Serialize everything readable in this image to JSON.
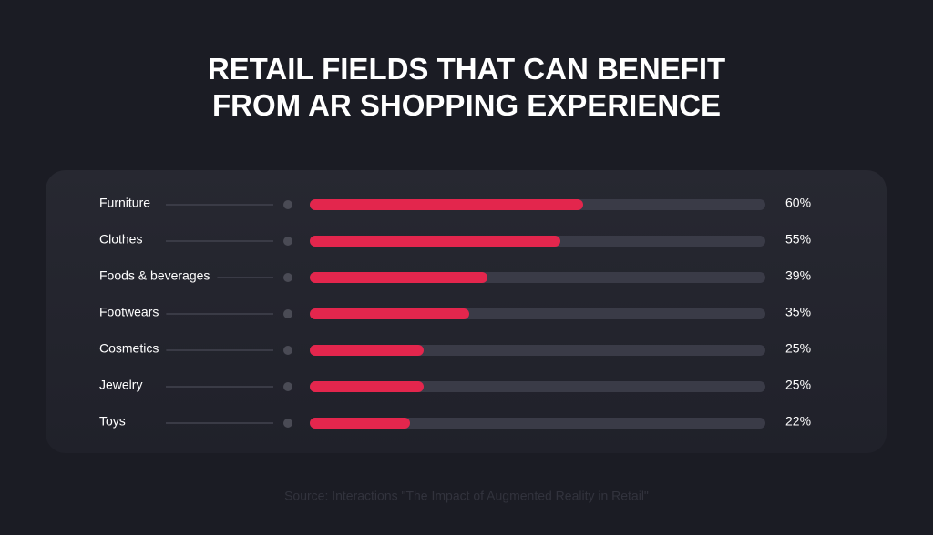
{
  "chart_data": {
    "type": "bar",
    "title": "RETAIL FIELDS THAT CAN BENEFIT FROM AR SHOPPING EXPERIENCE",
    "categories": [
      "Furniture",
      "Clothes",
      "Foods & beverages",
      "Footwears",
      "Cosmetics",
      "Jewelry",
      "Toys"
    ],
    "values": [
      60,
      55,
      39,
      35,
      25,
      25,
      22
    ],
    "value_labels": [
      "60%",
      "55%",
      "39%",
      "35%",
      "25%",
      "25%",
      "22%"
    ],
    "color": "#e3264d",
    "xlim": [
      0,
      100
    ],
    "source": "Source: Interactions \"The Impact of Augmented Reality in Retail\""
  }
}
